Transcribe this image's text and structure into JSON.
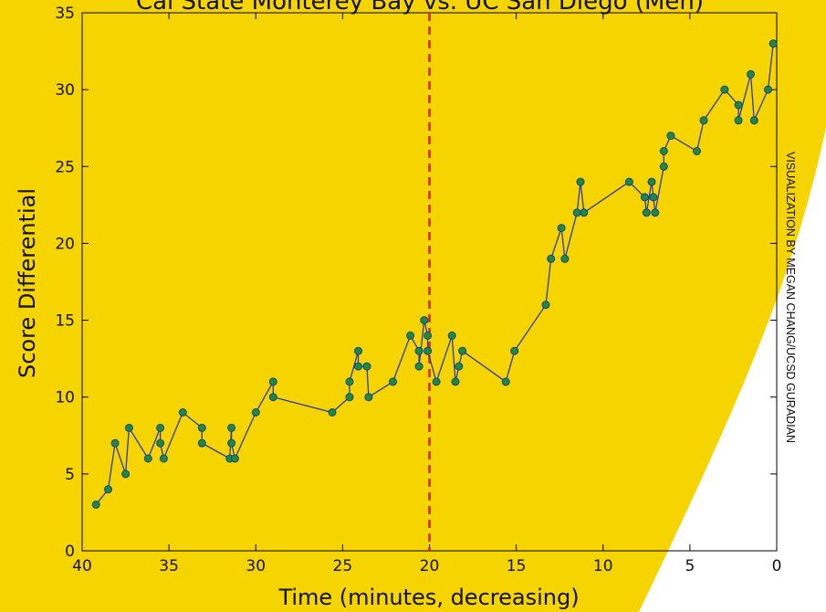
{
  "colors": {
    "background_yellow": "#f5d400",
    "line": "#2a3ab5",
    "marker": "#1f8a3a",
    "marker_edge": "#1a3f9a",
    "game_half_line": "#e0201e"
  },
  "credit": "VISUALIZATION BY MEGAN CHANG/UCSD GURADIAN",
  "chart_data": {
    "type": "line",
    "title": "Cal State Monterey Bay vs. UC San Diego (Men)",
    "xlabel": "Time (minutes, decreasing)",
    "ylabel": "Score Differential",
    "xlim": [
      40,
      0
    ],
    "ylim": [
      0,
      35
    ],
    "x_reversed": true,
    "x_ticks": [
      40,
      35,
      30,
      25,
      20,
      15,
      10,
      5,
      0
    ],
    "y_ticks": [
      0,
      5,
      10,
      15,
      20,
      25,
      30,
      35
    ],
    "vertical_reference": {
      "x": 20,
      "style": "dashed"
    },
    "grid": false,
    "series": [
      {
        "x": [
          39.2,
          38.5,
          38.1,
          37.5,
          37.3,
          36.2,
          35.5,
          35.5,
          35.3,
          34.2,
          33.1,
          33.1,
          31.5,
          31.4,
          31.4,
          31.2,
          30.0,
          29.0,
          29.0,
          25.6,
          24.6,
          24.6,
          24.1,
          24.1,
          23.6,
          23.5,
          22.1,
          21.1,
          20.6,
          20.6,
          20.3,
          20.1,
          20.1,
          19.6,
          18.7,
          18.5,
          18.3,
          18.1,
          15.6,
          15.1,
          13.3,
          13.0,
          12.4,
          12.2,
          11.5,
          11.3,
          11.1,
          8.5,
          7.6,
          7.5,
          7.2,
          7.1,
          7.0,
          6.5,
          6.5,
          6.1,
          4.6,
          4.2,
          3.0,
          2.2,
          2.2,
          1.5,
          1.3,
          0.5,
          0.2
        ],
        "y": [
          3,
          4,
          7,
          5,
          8,
          6,
          8,
          7,
          6,
          9,
          8,
          7,
          6,
          8,
          7,
          6,
          9,
          11,
          10,
          9,
          10,
          11,
          13,
          12,
          12,
          10,
          11,
          14,
          13,
          12,
          15,
          14,
          13,
          11,
          14,
          11,
          12,
          13,
          11,
          13,
          16,
          19,
          21,
          19,
          22,
          24,
          22,
          24,
          23,
          22,
          24,
          23,
          22,
          25,
          26,
          27,
          26,
          28,
          30,
          29,
          28,
          31,
          28,
          30,
          33
        ]
      }
    ]
  }
}
